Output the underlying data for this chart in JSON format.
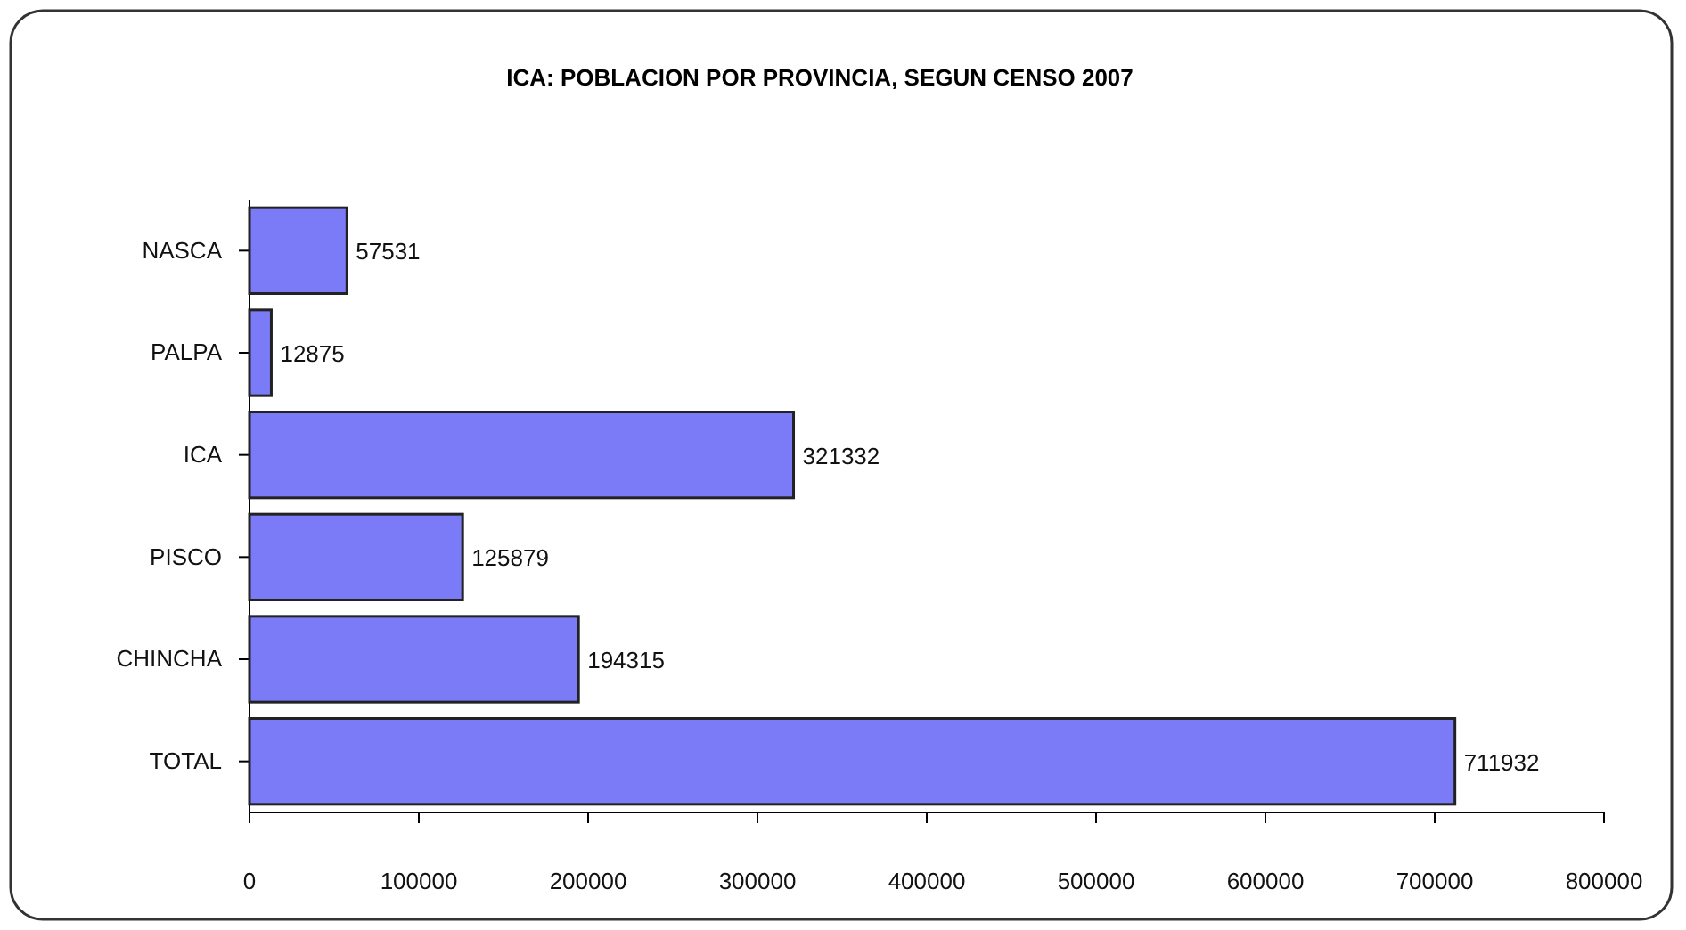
{
  "chart_data": {
    "type": "bar",
    "orientation": "horizontal",
    "title": "ICA: POBLACION POR PROVINCIA, SEGUN CENSO 2007",
    "categories": [
      "NASCA",
      "PALPA",
      "ICA",
      "PISCO",
      "CHINCHA",
      "TOTAL"
    ],
    "values": [
      57531,
      12875,
      321332,
      125879,
      194315,
      711932
    ],
    "color": "#7b7bf7",
    "xlim": [
      0,
      800000
    ],
    "xticks": [
      0,
      100000,
      200000,
      300000,
      400000,
      500000,
      600000,
      700000,
      800000
    ],
    "data_labels": true,
    "grid": false
  }
}
